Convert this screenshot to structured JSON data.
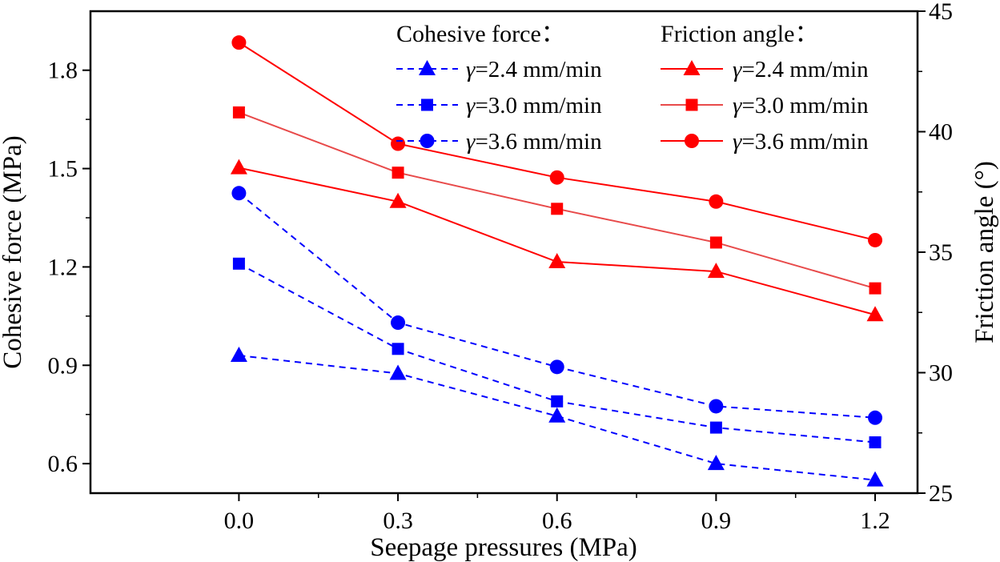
{
  "chart_data": {
    "type": "line",
    "x_axis": {
      "label": "Seepage pressures (MPa)",
      "range": [
        -0.28,
        1.28
      ],
      "ticks": [
        0.0,
        0.3,
        0.6,
        0.9,
        1.2
      ],
      "tick_labels": [
        "0.0",
        "0.3",
        "0.6",
        "0.9",
        "1.2"
      ]
    },
    "y_left": {
      "label": "Cohesive force (MPa)",
      "range": [
        0.51,
        1.98
      ],
      "ticks": [
        0.6,
        0.9,
        1.2,
        1.5,
        1.8
      ],
      "tick_labels": [
        "0.6",
        "0.9",
        "1.2",
        "1.5",
        "1.8"
      ]
    },
    "y_right": {
      "label": "Friction angle (°)",
      "range": [
        25,
        45
      ],
      "ticks": [
        25,
        30,
        35,
        40,
        45
      ],
      "tick_labels": [
        "25",
        "30",
        "35",
        "40",
        "45"
      ]
    },
    "x": [
      0.0,
      0.3,
      0.6,
      0.9,
      1.2
    ],
    "legend": {
      "cohesive_title": "Cohesive force：",
      "friction_title": "Friction angle：",
      "gamma_symbol": "γ"
    },
    "series": [
      {
        "group": "cohesive",
        "axis": "left",
        "name": "=2.4 mm/min",
        "marker": "triangle",
        "color": "#0000ff",
        "dash": true,
        "values": [
          0.93,
          0.875,
          0.745,
          0.6,
          0.55
        ]
      },
      {
        "group": "cohesive",
        "axis": "left",
        "name": "=3.0 mm/min",
        "marker": "square",
        "color": "#0000ff",
        "dash": true,
        "values": [
          1.21,
          0.95,
          0.79,
          0.71,
          0.665
        ]
      },
      {
        "group": "cohesive",
        "axis": "left",
        "name": "=3.6 mm/min",
        "marker": "circle",
        "color": "#0000ff",
        "dash": true,
        "values": [
          1.425,
          1.03,
          0.895,
          0.775,
          0.74
        ]
      },
      {
        "group": "friction",
        "axis": "right",
        "name": "=2.4 mm/min",
        "marker": "triangle",
        "color": "#ff0000",
        "dash": false,
        "values": [
          38.5,
          37.1,
          34.6,
          34.2,
          32.4
        ]
      },
      {
        "group": "friction",
        "axis": "right",
        "name": "=3.0 mm/min",
        "marker": "square",
        "color": "#ff0000",
        "line_color": "#e84a4a",
        "dash": false,
        "values": [
          40.8,
          38.3,
          36.8,
          35.4,
          33.5
        ]
      },
      {
        "group": "friction",
        "axis": "right",
        "name": "=3.6 mm/min",
        "marker": "circle",
        "color": "#ff0000",
        "dash": false,
        "values": [
          43.7,
          39.5,
          38.1,
          37.1,
          35.5
        ]
      }
    ]
  }
}
